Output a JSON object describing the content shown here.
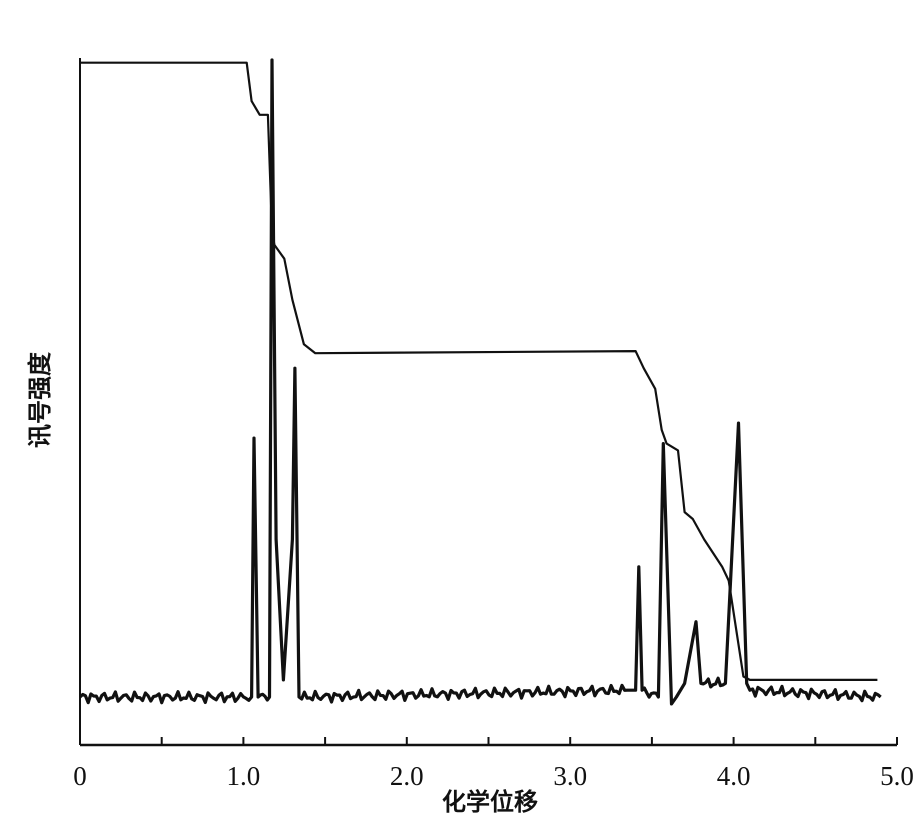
{
  "chart_data": {
    "type": "line",
    "title": "",
    "xlabel": "化学位移",
    "ylabel": "讯号强度",
    "xlim": [
      0,
      5.0
    ],
    "ylim": [
      0,
      100
    ],
    "x_ticks": [
      0,
      0.5,
      1.0,
      1.5,
      2.0,
      2.5,
      3.0,
      3.5,
      4.0,
      4.5,
      5.0
    ],
    "x_tick_labels": [
      "0",
      "1.0",
      "2.0",
      "3.0",
      "4.0",
      "5.0"
    ],
    "x_tick_label_values": [
      0,
      1.0,
      2.0,
      3.0,
      4.0,
      5.0
    ],
    "grid": false,
    "line_color": "#111111",
    "series": [
      {
        "role": "spectrum",
        "points": [
          [
            0,
            7
          ],
          [
            1.05,
            7
          ],
          [
            1.065,
            44.8
          ],
          [
            1.09,
            7
          ],
          [
            1.16,
            7
          ],
          [
            1.175,
            100
          ],
          [
            1.2,
            30
          ],
          [
            1.245,
            9.5
          ],
          [
            1.3,
            30
          ],
          [
            1.315,
            55
          ],
          [
            1.34,
            7
          ],
          [
            3.35,
            8
          ],
          [
            3.4,
            8
          ],
          [
            3.42,
            26
          ],
          [
            3.44,
            8
          ],
          [
            3.54,
            7
          ],
          [
            3.57,
            44
          ],
          [
            3.62,
            6
          ],
          [
            3.65,
            7
          ],
          [
            3.7,
            9
          ],
          [
            3.77,
            18
          ],
          [
            3.8,
            9
          ],
          [
            3.95,
            9
          ],
          [
            4.03,
            47
          ],
          [
            4.08,
            9
          ],
          [
            4.1,
            8
          ],
          [
            4.9,
            7
          ]
        ]
      },
      {
        "role": "integration",
        "points": [
          [
            0,
            99.6
          ],
          [
            1.02,
            99.6
          ],
          [
            1.05,
            94
          ],
          [
            1.1,
            92
          ],
          [
            1.15,
            92
          ],
          [
            1.175,
            75
          ],
          [
            1.19,
            73
          ],
          [
            1.25,
            71
          ],
          [
            1.3,
            65
          ],
          [
            1.37,
            58.5
          ],
          [
            1.44,
            57.2
          ],
          [
            3.4,
            57.5
          ],
          [
            3.45,
            55
          ],
          [
            3.52,
            52
          ],
          [
            3.56,
            46
          ],
          [
            3.59,
            44
          ],
          [
            3.66,
            43
          ],
          [
            3.7,
            34
          ],
          [
            3.75,
            33
          ],
          [
            3.82,
            30
          ],
          [
            3.93,
            26
          ],
          [
            3.97,
            24
          ],
          [
            4.06,
            10
          ],
          [
            4.1,
            9.5
          ],
          [
            4.88,
            9.5
          ]
        ]
      }
    ]
  }
}
